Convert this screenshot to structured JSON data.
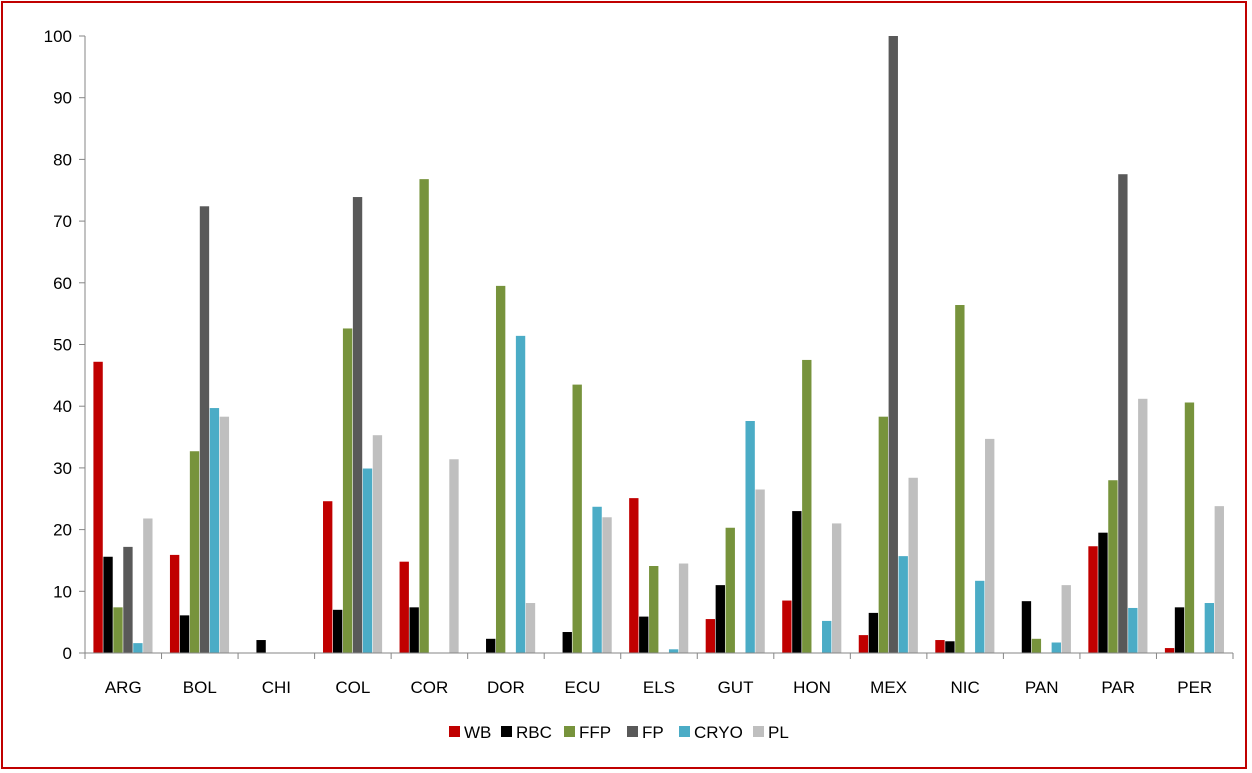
{
  "chart_data": {
    "type": "bar",
    "categories": [
      "ARG",
      "BOL",
      "CHI",
      "COL",
      "COR",
      "DOR",
      "ECU",
      "ELS",
      "GUT",
      "HON",
      "MEX",
      "NIC",
      "PAN",
      "PAR",
      "PER"
    ],
    "series": [
      {
        "name": "WB",
        "color": "#c00000",
        "values": [
          47.2,
          15.9,
          0,
          24.6,
          14.8,
          0,
          0,
          25.1,
          5.5,
          8.5,
          2.9,
          2.1,
          0,
          17.3,
          0.8
        ]
      },
      {
        "name": "RBC",
        "color": "#000000",
        "values": [
          15.6,
          6.1,
          2.1,
          7.0,
          7.4,
          2.3,
          3.4,
          5.9,
          11.0,
          23.0,
          6.5,
          1.9,
          8.4,
          19.5,
          7.4
        ]
      },
      {
        "name": "FFP",
        "color": "#77933c",
        "values": [
          7.4,
          32.7,
          0,
          52.6,
          76.8,
          59.5,
          43.5,
          14.1,
          20.3,
          47.5,
          38.3,
          56.4,
          2.3,
          28.0,
          40.6
        ]
      },
      {
        "name": "FP",
        "color": "#595959",
        "values": [
          17.2,
          72.4,
          0,
          73.9,
          0,
          0,
          0,
          0,
          0,
          0,
          100.0,
          0,
          0,
          77.6,
          0
        ]
      },
      {
        "name": "CRYO",
        "color": "#4bacc6",
        "values": [
          1.6,
          39.7,
          0,
          29.9,
          0,
          51.4,
          23.7,
          0.6,
          37.6,
          5.2,
          15.7,
          11.7,
          1.7,
          7.3,
          8.1
        ]
      },
      {
        "name": "PL",
        "color": "#bfbfbf",
        "values": [
          21.8,
          38.3,
          0,
          35.3,
          31.4,
          8.1,
          22.0,
          14.5,
          26.5,
          21.0,
          28.4,
          34.7,
          11.0,
          41.2,
          23.8
        ]
      }
    ],
    "ylim": [
      0,
      100
    ],
    "yticks": [
      "0",
      "10",
      "20",
      "30",
      "40",
      "50",
      "60",
      "70",
      "80",
      "90",
      "100"
    ],
    "grid": false,
    "legend_position": "bottom"
  }
}
